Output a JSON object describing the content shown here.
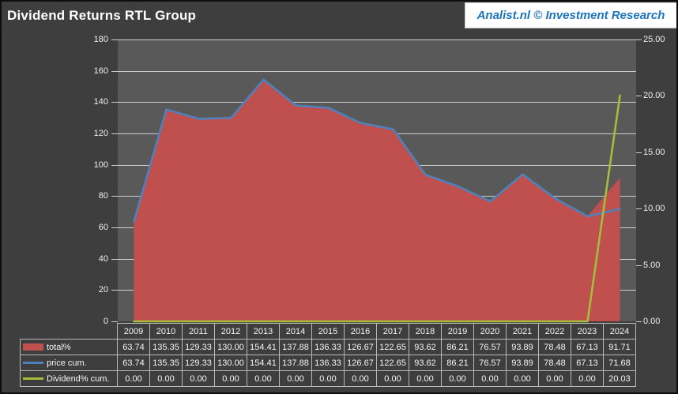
{
  "header": {
    "title": "Dividend Returns RTL Group",
    "badge": "Analist.nl © Investment Research"
  },
  "colors": {
    "page_background": "#3e3e3e",
    "plot_background": "#595959",
    "gridline": "#cfcfcf",
    "axis_text": "#efefef",
    "table_border": "#b9b9b9",
    "table_text": "#f5f5f5",
    "badge_background": "#ffffff",
    "badge_text": "#1b74bc",
    "title_text": "#ffffff",
    "series_red": "#c0504d",
    "series_blue": "#4f81bd",
    "series_green": "#a2be3c"
  },
  "chart_data": {
    "type": "area",
    "subtype": "combo area + 2 lines, dual axis, with data table",
    "title": "Dividend Returns RTL Group",
    "categories": [
      "2009",
      "2010",
      "2011",
      "2012",
      "2013",
      "2014",
      "2015",
      "2016",
      "2017",
      "2018",
      "2019",
      "2020",
      "2021",
      "2022",
      "2023",
      "2024"
    ],
    "series": [
      {
        "name": "total%",
        "type": "area",
        "axis": "left",
        "color": "#c0504d",
        "values": [
          63.74,
          135.35,
          129.33,
          130.0,
          154.41,
          137.88,
          136.33,
          126.67,
          122.65,
          93.62,
          86.21,
          76.57,
          93.89,
          78.48,
          67.13,
          91.71
        ]
      },
      {
        "name": "price cum.",
        "type": "line",
        "axis": "left",
        "color": "#4f81bd",
        "values": [
          63.74,
          135.35,
          129.33,
          130.0,
          154.41,
          137.88,
          136.33,
          126.67,
          122.65,
          93.62,
          86.21,
          76.57,
          93.89,
          78.48,
          67.13,
          71.68
        ]
      },
      {
        "name": "Dividend% cum.",
        "type": "line",
        "axis": "right",
        "color": "#a2be3c",
        "values": [
          0.0,
          0.0,
          0.0,
          0.0,
          0.0,
          0.0,
          0.0,
          0.0,
          0.0,
          0.0,
          0.0,
          0.0,
          0.0,
          0.0,
          0.0,
          20.03
        ]
      }
    ],
    "left_axis": {
      "min": 0,
      "max": 180,
      "step": 20,
      "decimals": 0
    },
    "right_axis": {
      "min": 0,
      "max": 25,
      "step": 5,
      "decimals": 2
    },
    "grid": true,
    "legend_position": "data-table-left"
  }
}
